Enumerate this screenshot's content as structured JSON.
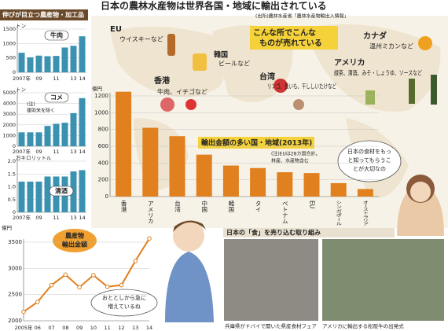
{
  "title": "日本の農林水産物は世界各国・地域に輸出されている",
  "source": "(出所)農林水産省「農林水産物輸出入情報」",
  "headline": [
    "こんな所でこんな",
    "ものが売れている"
  ],
  "panel_title": "伸びが目立つ農産物・加工品",
  "map_labels": [
    {
      "region": "EU",
      "items": "ウイスキーなど"
    },
    {
      "region": "韓国",
      "items": "ビールなど"
    },
    {
      "region": "香港",
      "items": "牛肉、イチゴなど"
    },
    {
      "region": "台湾",
      "items": "リンゴ、長いも、干ししいたけなど"
    },
    {
      "region": "カナダ",
      "items": "温州ミカンなど"
    },
    {
      "region": "アメリカ",
      "items": "緑茶、清酒、みそ・しょうゆ、ソースなど"
    }
  ],
  "bubbles": [
    [
      "日本の食材をもっ",
      "と知ってもらうこ",
      "とが大切なの"
    ],
    [
      "おととしから急に",
      "増えているね"
    ]
  ],
  "photos": {
    "title": "日本の「食」を売り込む取り組み",
    "captions": [
      "兵庫県がドバイで開いた県産食材フェア",
      "アメリカに輸出する松阪牛の出発式"
    ]
  },
  "chart_data": [
    {
      "type": "bar",
      "title": "輸出金額の多い国・地域(2013年)",
      "unit": "億円",
      "note": [
        "(注)EUは28カ国合計。",
        "林産、水産物含む"
      ],
      "categories": [
        "香港",
        "アメリカ",
        "台湾",
        "中国",
        "韓国",
        "タイ",
        "ベトナム",
        "EU",
        "シンガポール",
        "オーストラリア"
      ],
      "values": [
        1250,
        820,
        720,
        500,
        370,
        340,
        290,
        280,
        160,
        90
      ],
      "color": "#e0801e",
      "ylim": [
        0,
        1200
      ],
      "yticks": [
        0,
        200,
        400,
        600,
        800,
        1000,
        1200
      ]
    },
    {
      "type": "bar",
      "title": "牛肉",
      "unit": "トン",
      "categories": [
        "2007年",
        null,
        "09",
        null,
        "11",
        null,
        "13",
        "14"
      ],
      "values": [
        680,
        520,
        580,
        560,
        570,
        860,
        920,
        1250
      ],
      "color": "#3a92b0",
      "ylim": [
        0,
        1500
      ],
      "yticks": [
        0,
        500,
        1000,
        1500
      ]
    },
    {
      "type": "bar",
      "title": "コメ",
      "unit": "トン",
      "note": [
        "(注)",
        "援助米を除く"
      ],
      "categories": [
        "2007年",
        null,
        "09",
        null,
        "11",
        null,
        "13",
        "14"
      ],
      "values": [
        1300,
        1300,
        1300,
        1900,
        2100,
        2200,
        3100,
        4500
      ],
      "color": "#3a92b0",
      "ylim": [
        0,
        5000
      ],
      "yticks": [
        0,
        1000,
        2000,
        3000,
        4000,
        5000
      ]
    },
    {
      "type": "bar",
      "title": "清酒",
      "unit": "万キロリットル",
      "categories": [
        "2007年",
        null,
        "09",
        null,
        "11",
        null,
        "13",
        "14"
      ],
      "values": [
        1.2,
        1.2,
        1.2,
        1.4,
        1.4,
        1.4,
        1.6,
        1.65
      ],
      "color": "#3a92b0",
      "ylim": [
        0,
        2.0
      ],
      "yticks": [
        0,
        0.5,
        {
          "value": 1,
          "label": "1.0"
        },
        1.5,
        {
          "value": 2,
          "label": "2.0"
        }
      ]
    },
    {
      "type": "line",
      "title": [
        "農産物",
        "輸出金額"
      ],
      "unit": "億円",
      "categories": [
        "2005年",
        "06",
        "07",
        "08",
        "09",
        "10",
        "11",
        "12",
        "13",
        "14"
      ],
      "values": [
        2170,
        2360,
        2680,
        2880,
        2640,
        2870,
        2650,
        2680,
        3140,
        3570
      ],
      "color": "#e0801e",
      "ylim": [
        2000,
        3500
      ],
      "yticks": [
        2000,
        2500,
        3000,
        3500
      ]
    }
  ]
}
